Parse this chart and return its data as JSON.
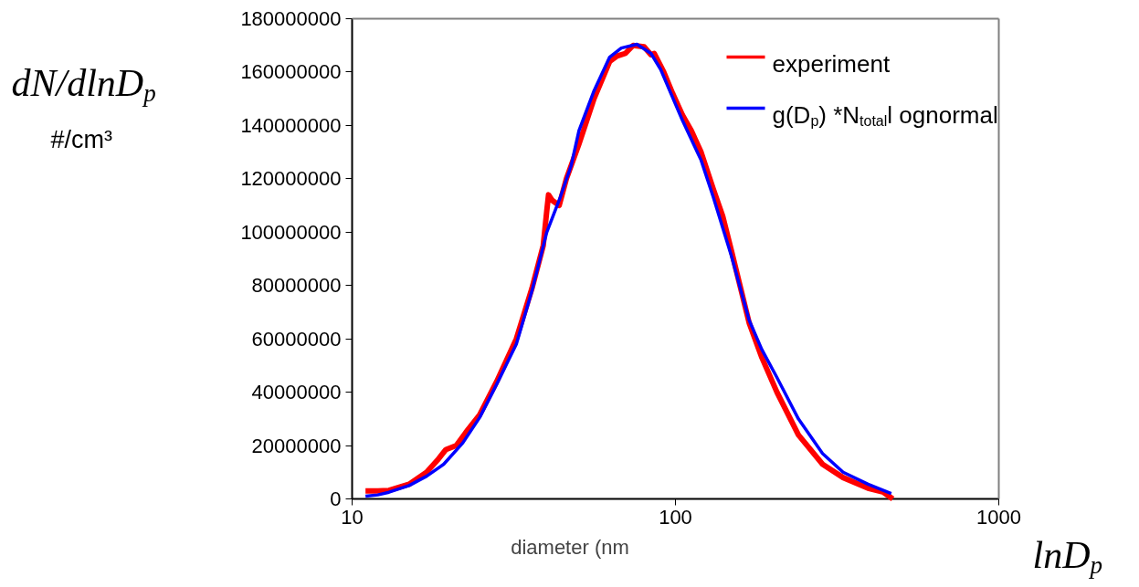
{
  "chart_data": {
    "type": "line",
    "xlabel": "diameter (nm",
    "ylabel": "dN/dlnD$_{p}$",
    "annotations": [
      "#/cm³",
      "lnD$_{p}$"
    ],
    "log": "x",
    "xlim": [
      10,
      1000
    ],
    "xticks": [
      10,
      100,
      1000
    ],
    "ylim": [
      0,
      180000000
    ],
    "yticks": [
      0,
      20000000,
      40000000,
      60000000,
      80000000,
      100000000,
      120000000,
      140000000,
      160000000,
      180000000
    ],
    "grid": false,
    "legend": "top right",
    "line_style": "solid",
    "marker": "none",
    "series": [
      {
        "name": "experiment",
        "color": "#ff0000",
        "x": [
          11,
          12,
          13,
          15,
          17,
          18.5,
          19.5,
          21,
          22.5,
          24.8,
          28,
          32.2,
          36,
          39,
          40,
          40.5,
          41.5,
          43.7,
          46,
          50.3,
          56,
          62.6,
          66,
          70,
          74,
          80,
          84,
          86,
          92,
          98,
          105,
          112,
          120,
          131,
          140,
          149,
          169,
          185,
          206,
          240,
          285,
          330,
          394,
          440,
          470
        ],
        "values": [
          3000000,
          3000000,
          3200000,
          5500000,
          10000000,
          15000000,
          18500000,
          20000000,
          25000000,
          31500000,
          44000000,
          60000000,
          79000000,
          95000000,
          108000000,
          114000000,
          112000000,
          110000000,
          120000000,
          133000000,
          150000000,
          164000000,
          166000000,
          167000000,
          170000000,
          169500000,
          166500000,
          167000000,
          160000000,
          152000000,
          144000000,
          138000000,
          130000000,
          116000000,
          106000000,
          93000000,
          66000000,
          53000000,
          40000000,
          24000000,
          13000000,
          8000000,
          4000000,
          2500000,
          0
        ]
      },
      {
        "name": "g(D$_{p}$) *N$_{total}$l ognormal",
        "color": "#0000ff",
        "x": [
          11,
          12,
          13,
          15,
          17,
          19.2,
          22,
          24.8,
          28,
          32.2,
          36,
          40,
          44,
          47.6,
          50.3,
          56,
          62.6,
          68,
          76,
          84,
          90,
          96,
          105,
          120,
          131,
          149,
          169,
          185,
          206,
          240,
          285,
          330,
          394,
          465
        ],
        "values": [
          1000000,
          1500000,
          2500000,
          5000000,
          8500000,
          13000000,
          21000000,
          30500000,
          43000000,
          58000000,
          78000000,
          100000000,
          113000000,
          125000000,
          138000000,
          153000000,
          165600000,
          169000000,
          170400000,
          167000000,
          161000000,
          153000000,
          142000000,
          127000000,
          113000000,
          91000000,
          67000000,
          56000000,
          45500000,
          30000000,
          17000000,
          10000000,
          5500000,
          2000000
        ]
      }
    ]
  }
}
